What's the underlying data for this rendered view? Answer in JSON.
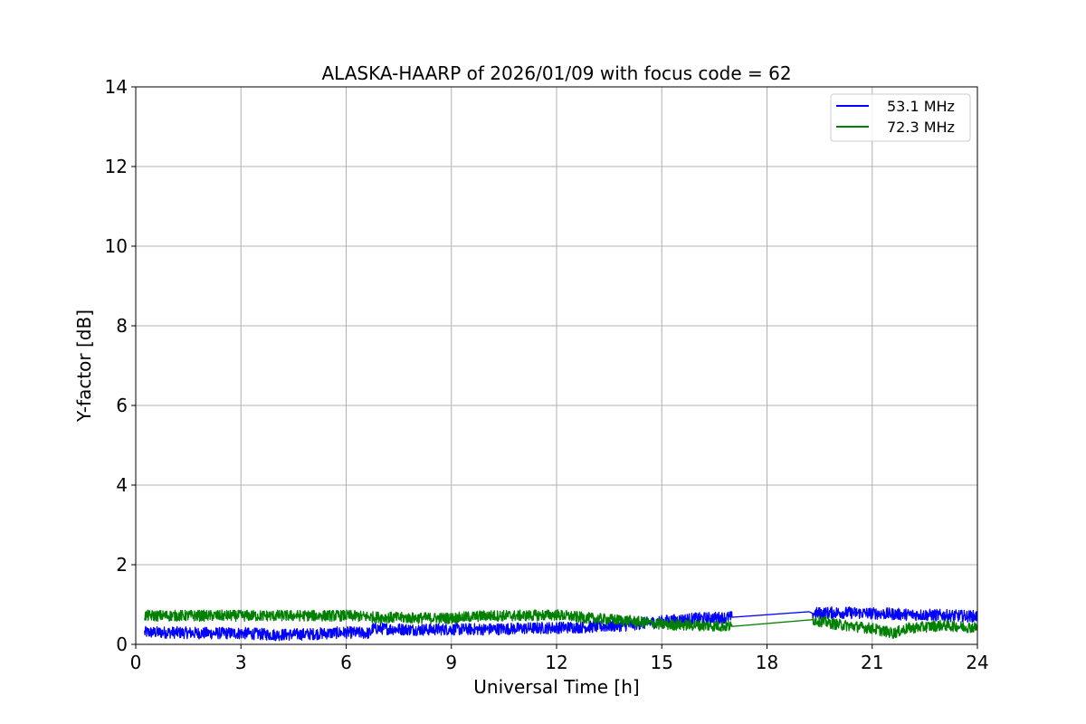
{
  "chart_data": {
    "type": "line",
    "title": "ALASKA-HAARP of 2026/01/09 with focus code = 62",
    "xlabel": "Universal Time [h]",
    "ylabel": "Y-factor [dB]",
    "xlim": [
      0,
      24
    ],
    "ylim": [
      0,
      14
    ],
    "xticks": [
      0,
      3,
      6,
      9,
      12,
      15,
      18,
      21,
      24
    ],
    "yticks": [
      0,
      2,
      4,
      6,
      8,
      10,
      12,
      14
    ],
    "grid": true,
    "legend_position": "top-right",
    "series": [
      {
        "name": "53.1 MHz",
        "color": "#0000ff",
        "noise_amplitude": 0.15,
        "points": [
          [
            0.25,
            0.3
          ],
          [
            1.0,
            0.3
          ],
          [
            2.0,
            0.28
          ],
          [
            3.0,
            0.28
          ],
          [
            4.0,
            0.24
          ],
          [
            5.0,
            0.26
          ],
          [
            6.0,
            0.3
          ],
          [
            6.7,
            0.28
          ],
          [
            6.75,
            0.4
          ],
          [
            8.0,
            0.37
          ],
          [
            9.0,
            0.38
          ],
          [
            10.0,
            0.38
          ],
          [
            11.0,
            0.4
          ],
          [
            12.0,
            0.42
          ],
          [
            13.0,
            0.44
          ],
          [
            14.0,
            0.48
          ],
          [
            15.0,
            0.58
          ],
          [
            16.0,
            0.65
          ],
          [
            17.0,
            0.68
          ],
          [
            19.2,
            0.82
          ],
          [
            19.3,
            0.78
          ],
          [
            20.0,
            0.8
          ],
          [
            21.0,
            0.78
          ],
          [
            22.0,
            0.75
          ],
          [
            23.0,
            0.73
          ],
          [
            24.0,
            0.7
          ]
        ],
        "gaps": [
          [
            17.0,
            19.3
          ]
        ]
      },
      {
        "name": "72.3 MHz",
        "color": "#008000",
        "noise_amplitude": 0.14,
        "points": [
          [
            0.25,
            0.72
          ],
          [
            2.0,
            0.72
          ],
          [
            4.0,
            0.72
          ],
          [
            6.0,
            0.72
          ],
          [
            7.0,
            0.68
          ],
          [
            8.0,
            0.66
          ],
          [
            9.0,
            0.66
          ],
          [
            10.0,
            0.72
          ],
          [
            11.0,
            0.72
          ],
          [
            12.0,
            0.74
          ],
          [
            13.0,
            0.65
          ],
          [
            14.0,
            0.6
          ],
          [
            15.0,
            0.5
          ],
          [
            16.0,
            0.48
          ],
          [
            17.0,
            0.45
          ],
          [
            19.3,
            0.62
          ],
          [
            20.0,
            0.5
          ],
          [
            21.0,
            0.4
          ],
          [
            21.6,
            0.28
          ],
          [
            22.0,
            0.4
          ],
          [
            23.0,
            0.48
          ],
          [
            24.0,
            0.42
          ]
        ],
        "gaps": [
          [
            17.0,
            19.3
          ]
        ]
      }
    ]
  }
}
